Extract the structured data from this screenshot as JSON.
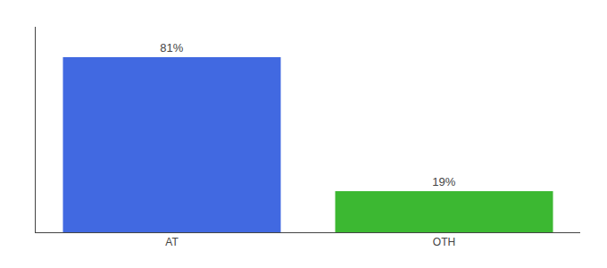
{
  "chart_data": {
    "type": "bar",
    "categories": [
      "AT",
      "OTH"
    ],
    "values": [
      81,
      19
    ],
    "value_labels": [
      "81%",
      "19%"
    ],
    "colors": [
      "#4169e1",
      "#3cb832"
    ],
    "ylim": [
      0,
      95
    ],
    "grid": false,
    "data_labels": true,
    "tick_labels": "x"
  }
}
